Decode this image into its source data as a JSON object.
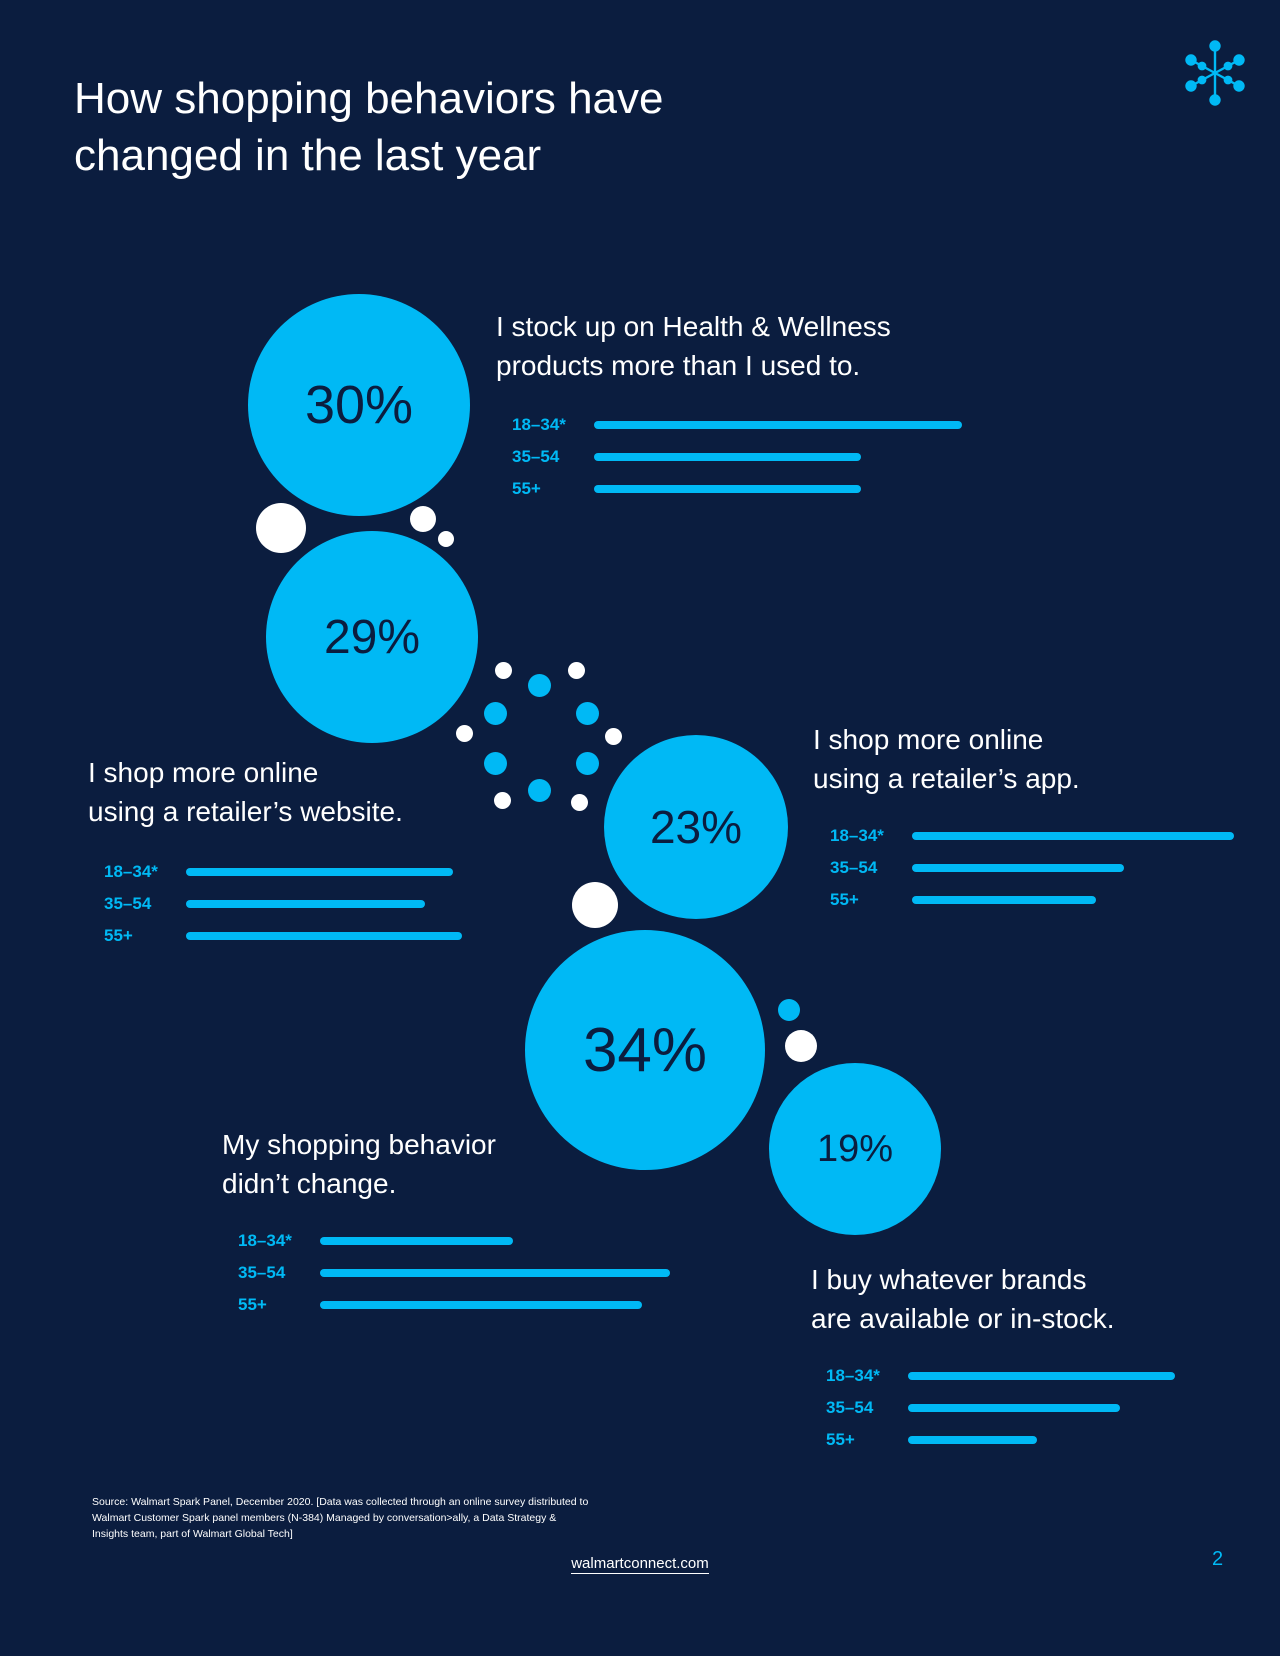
{
  "header": {
    "title": "How shopping behaviors have\nchanged in the last year"
  },
  "logo": {
    "icon": "spark-icon"
  },
  "colors": {
    "background": "#0b1d3f",
    "accent": "#00b9f5",
    "white": "#ffffff"
  },
  "chart_data": {
    "type": "bar",
    "stats": [
      {
        "id": "health",
        "percent": "30%",
        "statement": "I stock up on Health & Wellness\nproducts more than I used to.",
        "rows": [
          {
            "label": "18–34*",
            "value": 0.8
          },
          {
            "label": "35–54",
            "value": 0.58
          },
          {
            "label": "55+",
            "value": 0.58
          }
        ]
      },
      {
        "id": "website",
        "percent": "29%",
        "statement": "I shop more online\nusing a retailer’s website.",
        "rows": [
          {
            "label": "18–34*",
            "value": 0.58
          },
          {
            "label": "35–54",
            "value": 0.52
          },
          {
            "label": "55+",
            "value": 0.6
          }
        ]
      },
      {
        "id": "app",
        "percent": "23%",
        "statement": "I shop more online\nusing a retailer’s app.",
        "rows": [
          {
            "label": "18–34*",
            "value": 0.7
          },
          {
            "label": "35–54",
            "value": 0.46
          },
          {
            "label": "55+",
            "value": 0.4
          }
        ]
      },
      {
        "id": "nochange",
        "percent": "34%",
        "statement": "My shopping behavior\ndidn’t change.",
        "rows": [
          {
            "label": "18–34*",
            "value": 0.42
          },
          {
            "label": "35–54",
            "value": 0.76
          },
          {
            "label": "55+",
            "value": 0.7
          }
        ]
      },
      {
        "id": "brands",
        "percent": "19%",
        "statement": "I buy whatever brands\nare available or in-stock.",
        "rows": [
          {
            "label": "18–34*",
            "value": 0.58
          },
          {
            "label": "35–54",
            "value": 0.46
          },
          {
            "label": "55+",
            "value": 0.28
          }
        ]
      }
    ]
  },
  "footer": {
    "source": "Source: Walmart Spark Panel, December 2020. [Data was collected through an online survey distributed to Walmart Customer Spark panel members (N-384) Managed by conversation>ally, a Data Strategy & Insights team, part of Walmart Global Tech]",
    "url": "walmartconnect.com",
    "page_number": "2"
  }
}
